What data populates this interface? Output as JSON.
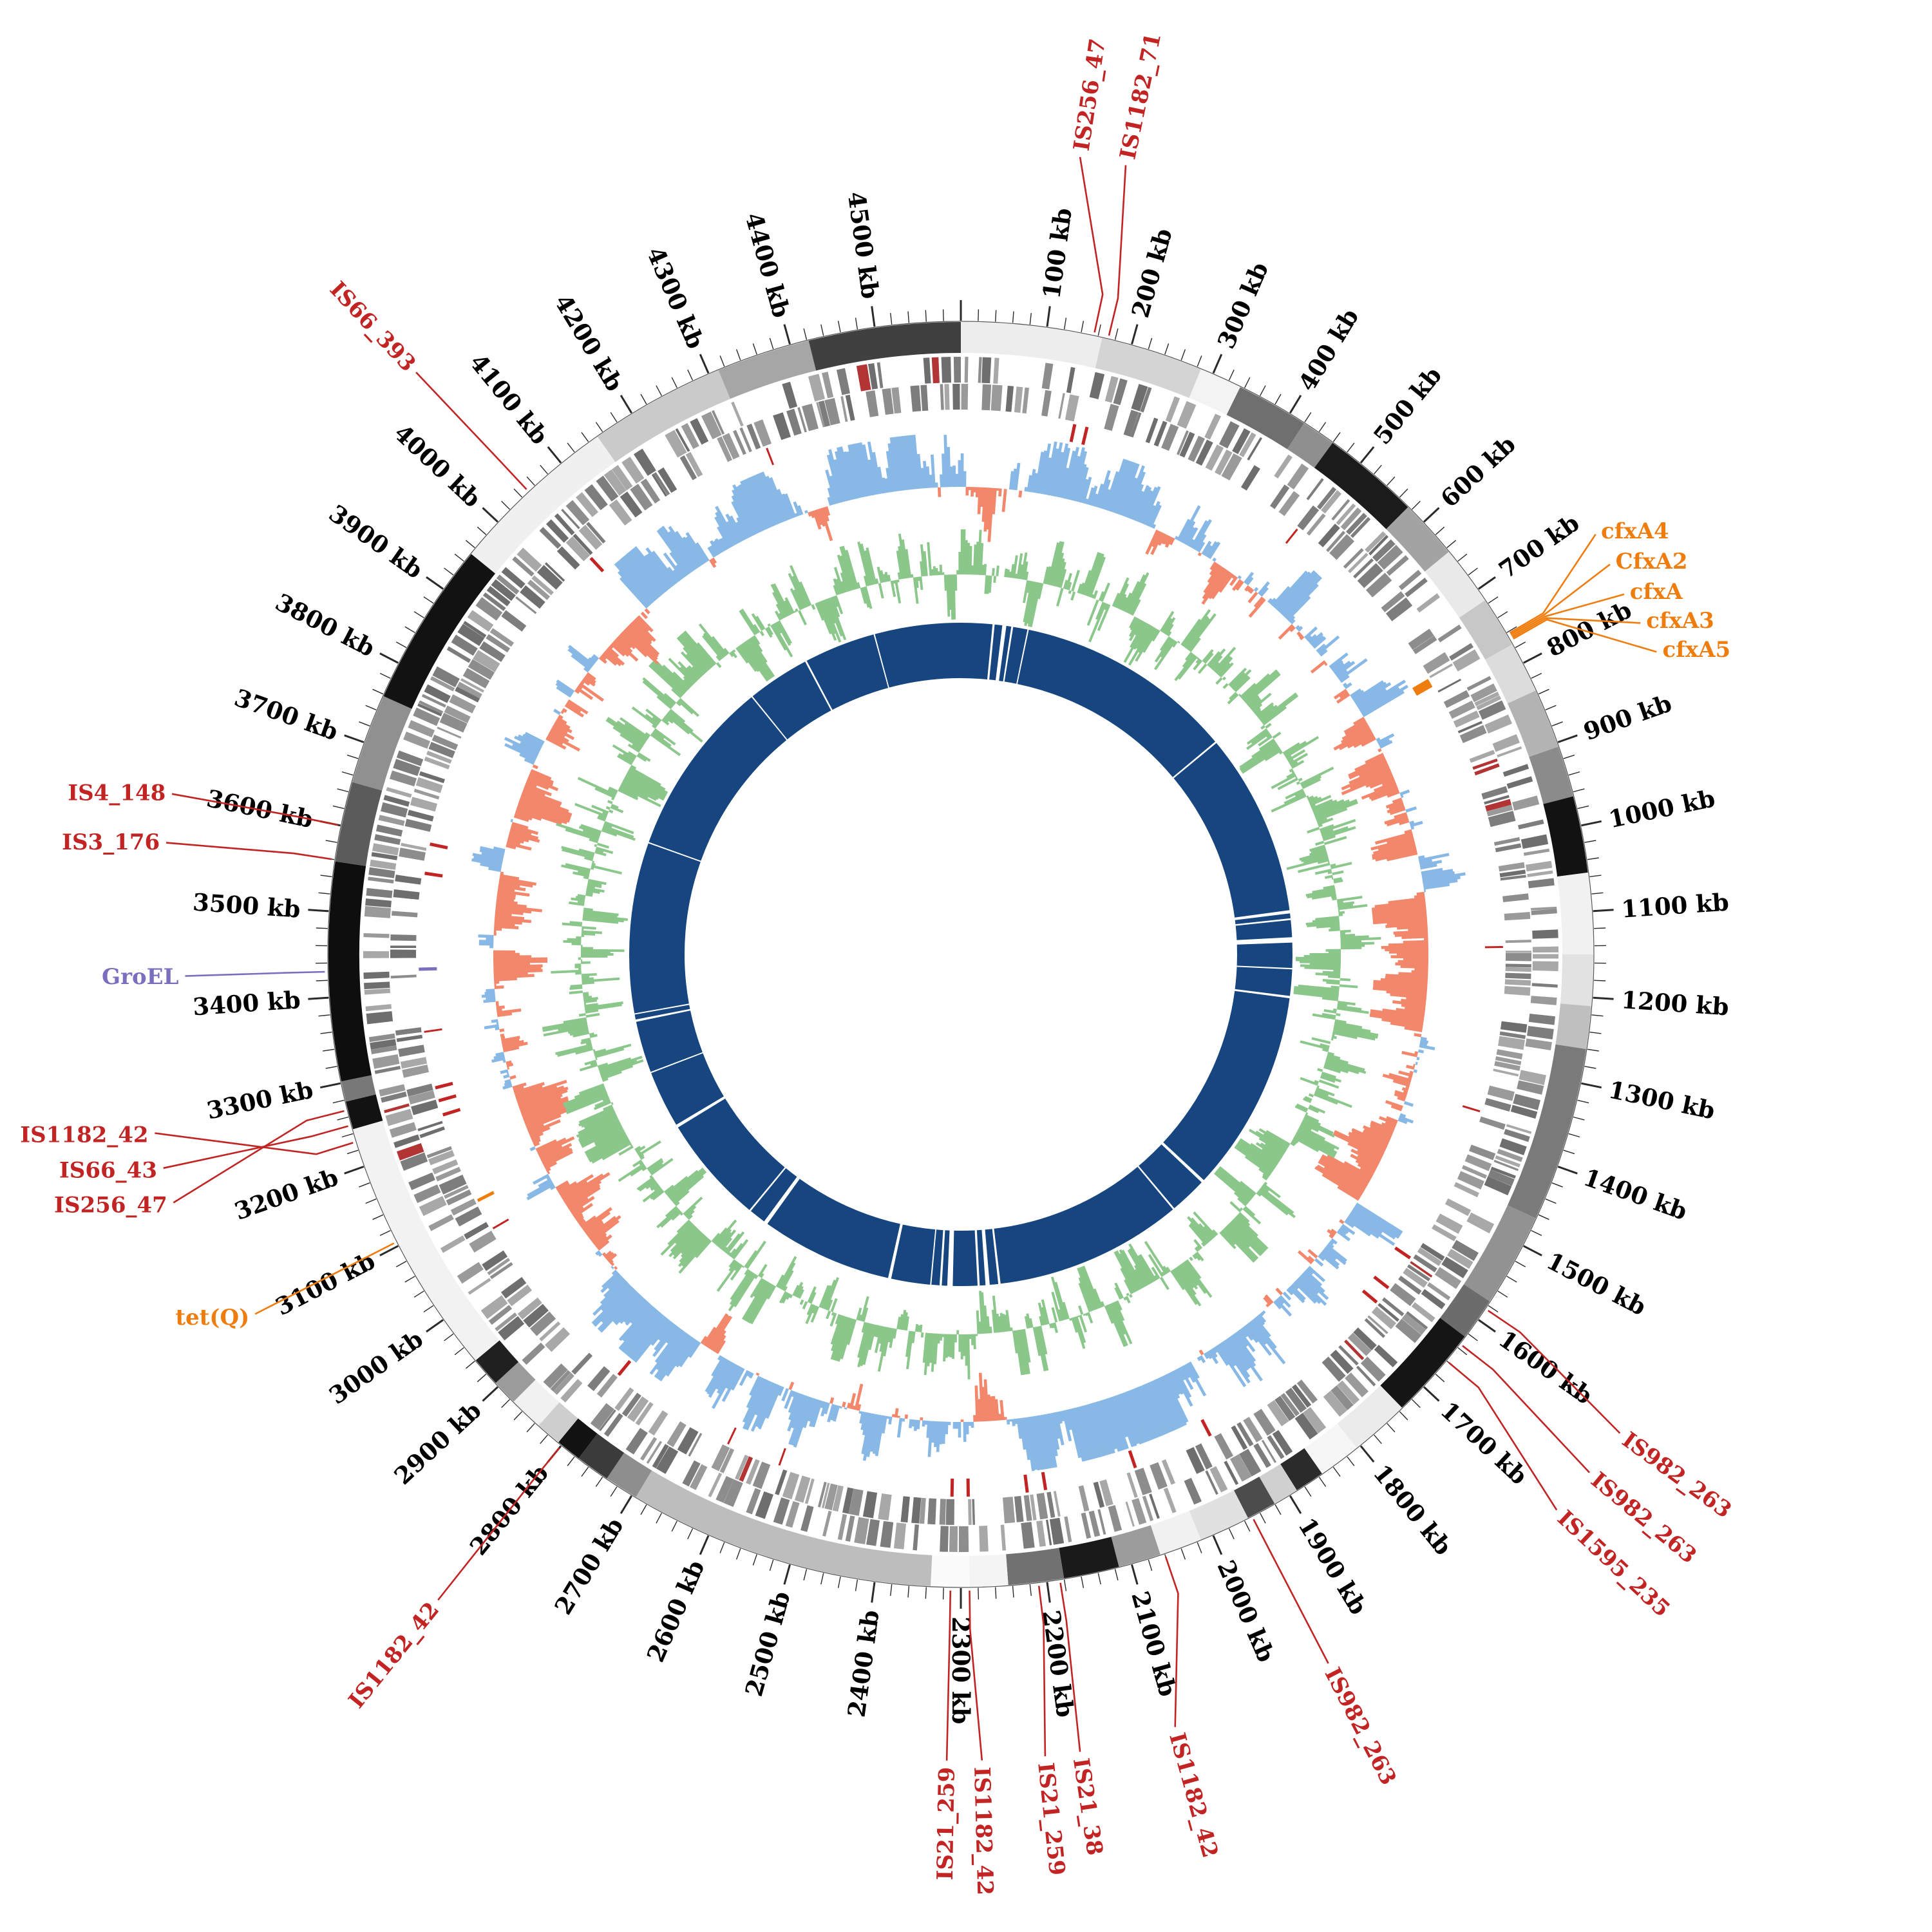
{
  "figure": {
    "description": "Circular genome map (circos-style) with contig ring, gene tracks, GC skew ring, GC content ring, inner alignment/coverage ring and labelled mobile elements / resistance genes",
    "unit": "kb"
  },
  "chart_data": {
    "type": "circos-genome-plot",
    "genome_length_kb": 4600,
    "seed": 42,
    "axis": {
      "major_tick_kb": 100,
      "minor_tick_kb": 20,
      "label_suffix": " kb",
      "labels": [
        "100 kb",
        "200 kb",
        "300 kb",
        "400 kb",
        "500 kb",
        "600 kb",
        "700 kb",
        "800 kb",
        "900 kb",
        "1000 kb",
        "1100 kb",
        "1200 kb",
        "1300 kb",
        "1400 kb",
        "1500 kb",
        "1600 kb",
        "1700 kb",
        "1800 kb",
        "1900 kb",
        "2000 kb",
        "2100 kb",
        "2200 kb",
        "2300 kb",
        "2400 kb",
        "2500 kb",
        "2600 kb",
        "2700 kb",
        "2800 kb",
        "2900 kb",
        "3000 kb",
        "3100 kb",
        "3200 kb",
        "3300 kb",
        "3400 kb",
        "3500 kb",
        "3600 kb",
        "3700 kb",
        "3800 kb",
        "3900 kb",
        "4000 kb",
        "4100 kb",
        "4200 kb",
        "4300 kb",
        "4400 kb",
        "4500 kb"
      ]
    },
    "colors": {
      "red": "#c22323",
      "orange": "#ef7d0e",
      "purple": "#7a6fbe",
      "navy": "#16457f",
      "skew_pos": "#88b9e6",
      "skew_neg": "#f2876b",
      "gc": "#8bc78b",
      "gene": "#8d8d8d",
      "tick": "#2a2a2a"
    },
    "rings": [
      {
        "name": "contigs",
        "r_center": 958,
        "height": 48
      },
      {
        "name": "genes-forward",
        "r_center": 908,
        "height": 40
      },
      {
        "name": "genes-reverse",
        "r_center": 866,
        "height": 40
      },
      {
        "name": "feature-marks",
        "r_inner": 814,
        "r_outer": 842
      },
      {
        "name": "gc-skew",
        "baseline_r": 726,
        "amplitude": 84
      },
      {
        "name": "gc-content",
        "baseline_r": 590,
        "amplitude": 70
      },
      {
        "name": "coverage",
        "r_center": 472,
        "height": 86
      }
    ],
    "contigs": [
      [
        0,
        165,
        "#ededed"
      ],
      [
        165,
        285,
        "#d4d4d4"
      ],
      [
        285,
        335,
        "#f3f3f3"
      ],
      [
        335,
        420,
        "#6f6f6f"
      ],
      [
        420,
        460,
        "#8f8f8f"
      ],
      [
        460,
        575,
        "#1b1b1b"
      ],
      [
        575,
        645,
        "#a3a3a3"
      ],
      [
        645,
        715,
        "#e9e9e9"
      ],
      [
        715,
        775,
        "#c7c7c7"
      ],
      [
        775,
        835,
        "#dcdcdc"
      ],
      [
        835,
        905,
        "#b3b3b3"
      ],
      [
        905,
        965,
        "#8b8b8b"
      ],
      [
        965,
        1055,
        "#121212"
      ],
      [
        1055,
        1150,
        "#f1f1f1"
      ],
      [
        1150,
        1210,
        "#e2e2e2"
      ],
      [
        1210,
        1260,
        "#bfbfbf"
      ],
      [
        1260,
        1465,
        "#7a7a7a"
      ],
      [
        1465,
        1575,
        "#929292"
      ],
      [
        1575,
        1625,
        "#6c6c6c"
      ],
      [
        1625,
        1735,
        "#151515"
      ],
      [
        1735,
        1805,
        "#ebebeb"
      ],
      [
        1805,
        1855,
        "#f6f6f6"
      ],
      [
        1855,
        1890,
        "#2b2b2b"
      ],
      [
        1890,
        1920,
        "#d0d0d0"
      ],
      [
        1920,
        1955,
        "#4c4c4c"
      ],
      [
        1955,
        2015,
        "#e1e1e1"
      ],
      [
        2015,
        2065,
        "#f1f1f1"
      ],
      [
        2065,
        2115,
        "#9c9c9c"
      ],
      [
        2115,
        2180,
        "#1a1a1a"
      ],
      [
        2180,
        2245,
        "#717171"
      ],
      [
        2245,
        2290,
        "#f4f4f4"
      ],
      [
        2290,
        2335,
        "#fbfbfb"
      ],
      [
        2335,
        2695,
        "#bdbdbd"
      ],
      [
        2695,
        2735,
        "#8e8e8e"
      ],
      [
        2735,
        2775,
        "#3b3b3b"
      ],
      [
        2775,
        2805,
        "#121212"
      ],
      [
        2805,
        2835,
        "#cecece"
      ],
      [
        2835,
        2875,
        "#f1f1f1"
      ],
      [
        2875,
        2905,
        "#9b9b9b"
      ],
      [
        2905,
        2940,
        "#202020"
      ],
      [
        2940,
        3245,
        "#f2f2f2"
      ],
      [
        3245,
        3278,
        "#121212"
      ],
      [
        3278,
        3302,
        "#787878"
      ],
      [
        3302,
        3558,
        "#0e0e0e"
      ],
      [
        3558,
        3652,
        "#5b5b5b"
      ],
      [
        3652,
        3758,
        "#909090"
      ],
      [
        3758,
        3952,
        "#121212"
      ],
      [
        3952,
        4152,
        "#f0f0f0"
      ],
      [
        4152,
        4312,
        "#cacaca"
      ],
      [
        4312,
        4422,
        "#a6a6a6"
      ],
      [
        4422,
        4600,
        "#404040"
      ]
    ],
    "skew_regions": [
      [
        0,
        760,
        1
      ],
      [
        760,
        1560,
        -1
      ],
      [
        1560,
        2950,
        1
      ],
      [
        2950,
        4060,
        -1
      ],
      [
        4060,
        4600,
        1
      ]
    ],
    "coverage_gaps": [
      [
        70,
        5
      ],
      [
        92,
        9
      ],
      [
        112,
        4
      ],
      [
        148,
        3
      ],
      [
        640,
        4
      ],
      [
        1052,
        7
      ],
      [
        1070,
        4
      ],
      [
        1112,
        12
      ],
      [
        1180,
        3
      ],
      [
        1242,
        5
      ],
      [
        1698,
        7
      ],
      [
        1788,
        4
      ],
      [
        2212,
        5
      ],
      [
        2236,
        9
      ],
      [
        2258,
        5
      ],
      [
        2318,
        12
      ],
      [
        2342,
        5
      ],
      [
        2365,
        3
      ],
      [
        2455,
        7
      ],
      [
        2756,
        9
      ],
      [
        2802,
        4
      ],
      [
        3048,
        7
      ],
      [
        3182,
        3
      ],
      [
        3300,
        5
      ],
      [
        3316,
        3
      ],
      [
        3700,
        3
      ],
      [
        4100,
        3
      ],
      [
        4242,
        4
      ],
      [
        4405,
        3
      ]
    ],
    "extra_marker_ticks_kb": [
      490,
      1140,
      1365,
      2550,
      2625,
      3062,
      3345,
      4332
    ],
    "annotations": [
      {
        "label": "IS256_47",
        "kb": 155,
        "color": "red",
        "orient": "radial",
        "label_angle": 8.5,
        "label_r": 1262
      },
      {
        "label": "IS1182_71",
        "kb": 172,
        "color": "red",
        "orient": "radial",
        "label_angle": 11.8,
        "label_r": 1262
      },
      {
        "label": "cfxA4",
        "kb": 762,
        "color": "orange",
        "orient": "h",
        "label_angle": 56.5,
        "label_r": 1192
      },
      {
        "label": "CfxA2",
        "kb": 764,
        "color": "orange",
        "orient": "h",
        "label_angle": 59.0,
        "label_r": 1186
      },
      {
        "label": "cfxA",
        "kb": 766,
        "color": "orange",
        "orient": "h",
        "label_angle": 61.5,
        "label_r": 1182
      },
      {
        "label": "cfxA3",
        "kb": 768,
        "color": "orange",
        "orient": "h",
        "label_angle": 64.0,
        "label_r": 1184
      },
      {
        "label": "cfxA5",
        "kb": 770,
        "color": "orange",
        "orient": "h",
        "label_angle": 66.5,
        "label_r": 1188
      },
      {
        "label": "IS982_263",
        "kb": 1585,
        "color": "red",
        "orient": "radial",
        "label_angle": 126.0,
        "label_r": 1275
      },
      {
        "label": "IS982_263",
        "kb": 1635,
        "color": "red",
        "orient": "radial",
        "label_angle": 129.5,
        "label_r": 1275
      },
      {
        "label": "IS1595_235",
        "kb": 1660,
        "color": "red",
        "orient": "radial",
        "label_angle": 133.0,
        "label_r": 1275
      },
      {
        "label": "IS982_263",
        "kb": 1950,
        "color": "red",
        "orient": "radial",
        "label_angle": 152.6,
        "label_r": 1250
      },
      {
        "label": "IS1182_42",
        "kb": 2060,
        "color": "red",
        "orient": "radial",
        "label_angle": 164.5,
        "label_r": 1255
      },
      {
        "label": "IS21_38",
        "kb": 2185,
        "color": "red",
        "orient": "radial",
        "label_angle": 171.5,
        "label_r": 1262
      },
      {
        "label": "IS21_259",
        "kb": 2210,
        "color": "red",
        "orient": "radial",
        "label_angle": 174.0,
        "label_r": 1262
      },
      {
        "label": "IS1182_42",
        "kb": 2290,
        "color": "red",
        "orient": "radial",
        "label_angle": 178.5,
        "label_r": 1262
      },
      {
        "label": "IS21_259",
        "kb": 2312,
        "color": "red",
        "orient": "radial",
        "label_angle": 181.0,
        "label_r": 1262
      },
      {
        "label": "IS1182_42",
        "kb": 2800,
        "color": "red",
        "orient": "radial",
        "label_angle": 219.0,
        "label_r": 1300
      },
      {
        "label": "tet(Q)",
        "kb": 3105,
        "color": "orange",
        "orient": "h",
        "label_angle": 243.0,
        "label_r": 1240
      },
      {
        "label": "IS1182_42",
        "kb": 3230,
        "color": "red",
        "orient": "h",
        "label_angle": 257.5,
        "label_r": 1292
      },
      {
        "label": "IS66_43",
        "kb": 3250,
        "color": "red",
        "orient": "h",
        "label_angle": 255.0,
        "label_r": 1292
      },
      {
        "label": "IS256_47",
        "kb": 3268,
        "color": "red",
        "orient": "h",
        "label_angle": 252.5,
        "label_r": 1292
      },
      {
        "label": "GroEL",
        "kb": 3430,
        "color": "purple",
        "orient": "h",
        "label_angle": 268.4,
        "label_r": 1215
      },
      {
        "label": "IS3_176",
        "kb": 3560,
        "color": "red",
        "orient": "h",
        "label_angle": 278.0,
        "label_r": 1256
      },
      {
        "label": "IS4_148",
        "kb": 3600,
        "color": "red",
        "orient": "h",
        "label_angle": 281.5,
        "label_r": 1260
      },
      {
        "label": "IS66_393",
        "kb": 4050,
        "color": "red",
        "orient": "radial",
        "label_angle": 316.9,
        "label_r": 1248
      }
    ]
  }
}
